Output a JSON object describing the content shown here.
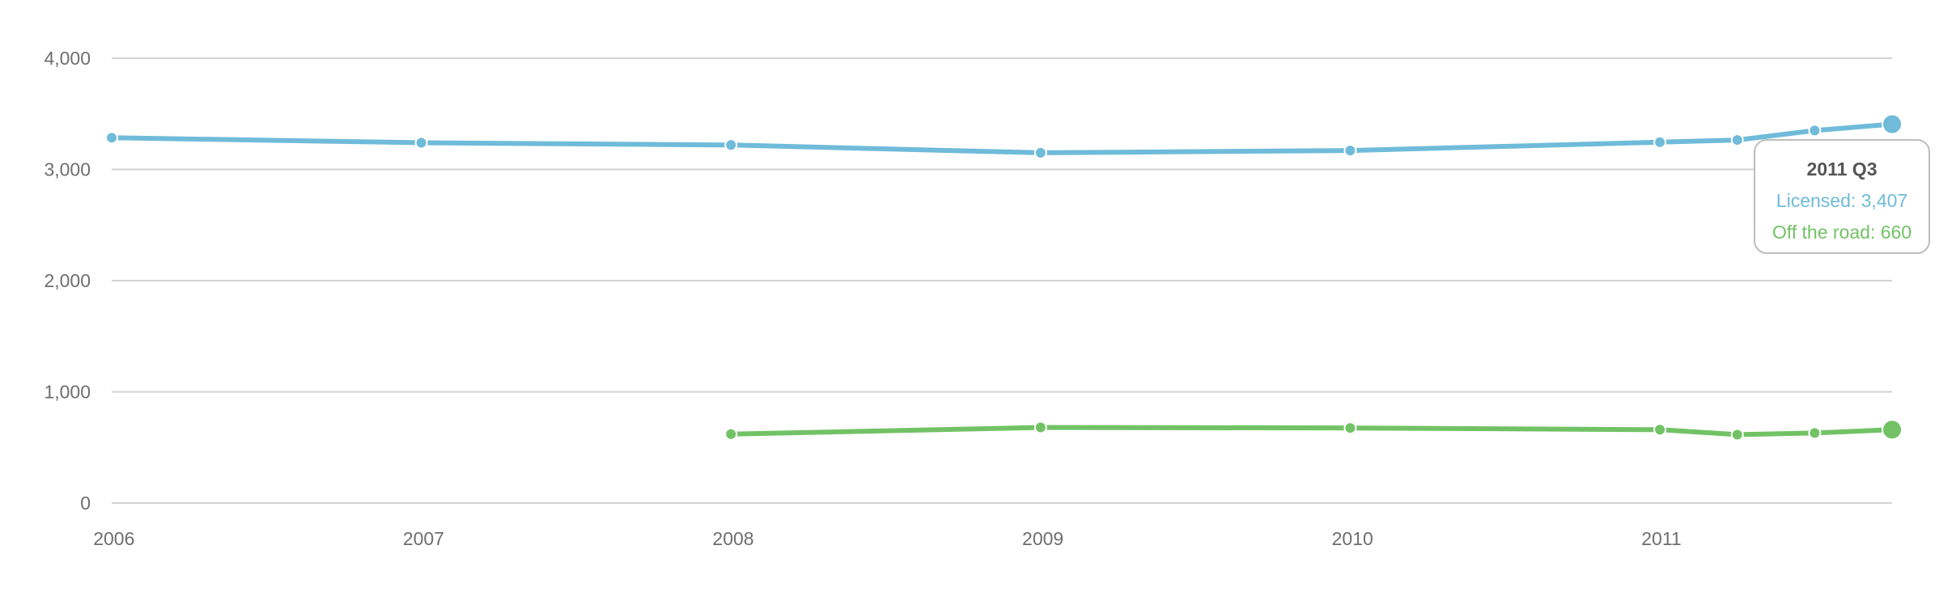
{
  "chart_data": {
    "type": "line",
    "title": "",
    "xlabel": "",
    "ylabel": "",
    "ylim": [
      0,
      4000
    ],
    "xlim": [
      "2006 Q1",
      "2011 Q3"
    ],
    "y_ticks": [
      "0",
      "1,000",
      "2,000",
      "3,000",
      "4,000"
    ],
    "x_ticks": [
      "2006",
      "2007",
      "2008",
      "2009",
      "2010",
      "2011"
    ],
    "grid": true,
    "series": [
      {
        "name": "Licensed",
        "color": "#6fbbd9",
        "x": [
          "2006 Q1",
          "2007 Q1",
          "2008 Q1",
          "2009 Q1",
          "2010 Q1",
          "2011 Q1",
          "2011 Q2",
          "2011 Q3 (early)",
          "2011 Q3"
        ],
        "points": [
          {
            "x": 2006.0,
            "y": 3285
          },
          {
            "x": 2007.0,
            "y": 3240
          },
          {
            "x": 2008.0,
            "y": 3220
          },
          {
            "x": 2009.0,
            "y": 3150
          },
          {
            "x": 2010.0,
            "y": 3170
          },
          {
            "x": 2011.0,
            "y": 3245
          },
          {
            "x": 2011.25,
            "y": 3265
          },
          {
            "x": 2011.5,
            "y": 3350
          },
          {
            "x": 2011.75,
            "y": 3407
          }
        ]
      },
      {
        "name": "Off the road",
        "color": "#72c265",
        "points": [
          {
            "x": 2008.0,
            "y": 620
          },
          {
            "x": 2009.0,
            "y": 680
          },
          {
            "x": 2010.0,
            "y": 675
          },
          {
            "x": 2011.0,
            "y": 660
          },
          {
            "x": 2011.25,
            "y": 615
          },
          {
            "x": 2011.5,
            "y": 630
          },
          {
            "x": 2011.75,
            "y": 660
          }
        ]
      }
    ],
    "tooltip": {
      "title": "2011 Q3",
      "rows": [
        "Licensed: 3,407",
        "Off the road: 660"
      ]
    }
  }
}
